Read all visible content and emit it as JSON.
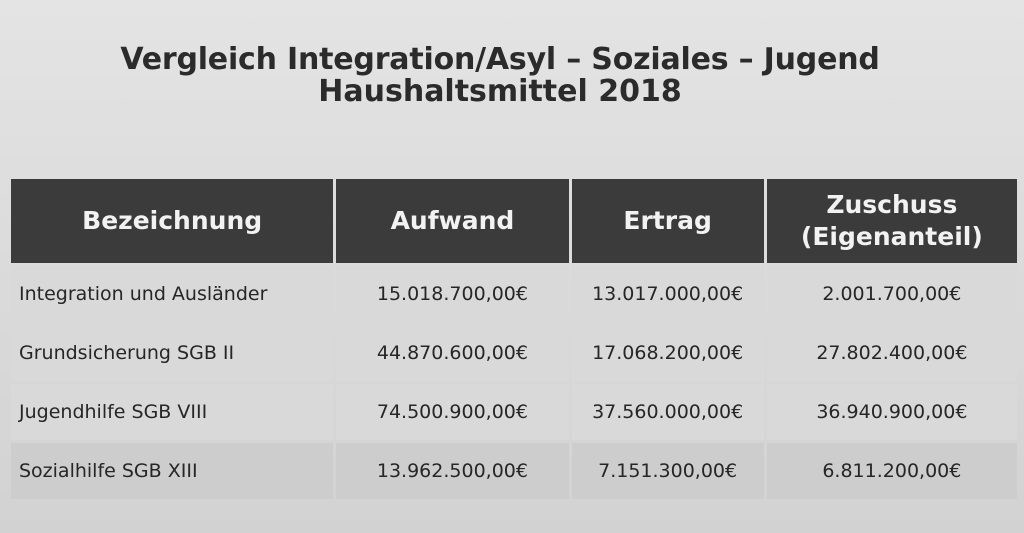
{
  "title": {
    "line1": "Vergleich Integration/Asyl – Soziales – Jugend",
    "line2": "Haushaltsmittel 2018"
  },
  "table": {
    "headers": [
      "Bezeichnung",
      "Aufwand",
      "Ertrag",
      "Zuschuss\n(Eigenanteil)"
    ],
    "header_zuschuss_line1": "Zuschuss",
    "header_zuschuss_line2": "(Eigenanteil)",
    "rows": [
      [
        "Integration und Ausländer",
        "15.018.700,00€",
        "13.017.000,00€",
        "2.001.700,00€"
      ],
      [
        "Grundsicherung SGB II",
        "44.870.600,00€",
        "17.068.200,00€",
        "27.802.400,00€"
      ],
      [
        "Jugendhilfe SGB VIII",
        "74.500.900,00€",
        "37.560.000,00€",
        "36.940.900,00€"
      ],
      [
        "Sozialhilfe SGB XIII",
        "13.962.500,00€",
        "7.151.300,00€",
        "6.811.200,00€"
      ]
    ]
  },
  "colors": {
    "header_bg": "#3b3b3b",
    "header_text": "#f2f2f2",
    "body_text": "#262626"
  }
}
